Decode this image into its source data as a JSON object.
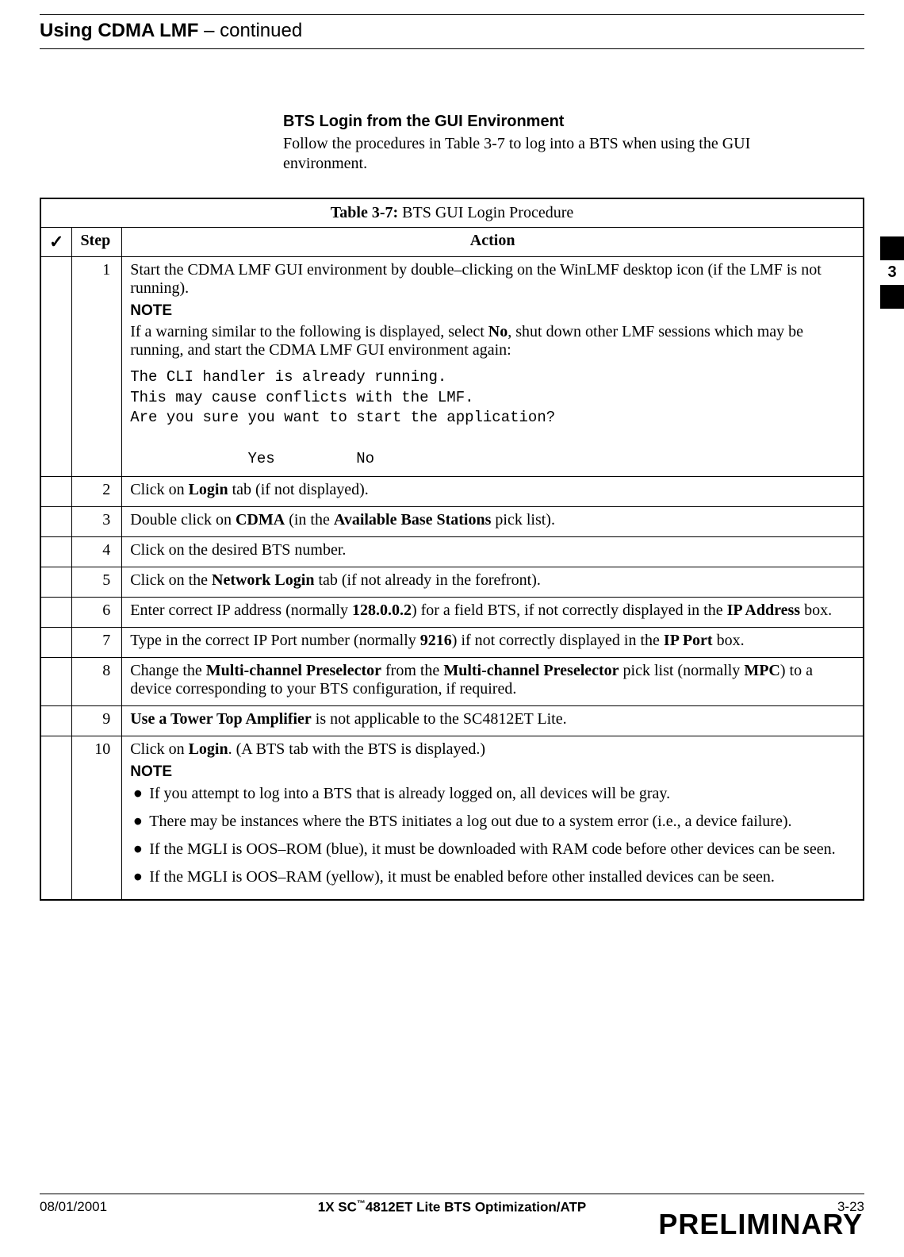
{
  "header": {
    "title_bold": "Using CDMA LMF",
    "title_rest": " – continued"
  },
  "side_tab": {
    "number": "3"
  },
  "section": {
    "heading": "BTS Login from the GUI Environment",
    "para_pre": "Follow the procedures in ",
    "para_ref": "Table 3-7",
    "para_post": " to log into a BTS when using the GUI environment."
  },
  "table": {
    "caption_label": "Table 3-7:",
    "caption_text": " BTS GUI Login Procedure",
    "head_check": "✓",
    "head_step": "Step",
    "head_action": "Action",
    "rows": [
      {
        "step": "1",
        "action_pre": "Start the CDMA LMF GUI environment by double–clicking on the WinLMF desktop icon (if the LMF is not running).",
        "note_label": "NOTE",
        "note_text_pre": "If a warning similar to the following is displayed, select ",
        "note_bold": "No",
        "note_text_post": ", shut down other LMF sessions which may be running, and start the CDMA LMF GUI environment again:",
        "mono": "The CLI handler is already running.\nThis may cause conflicts with the LMF.\nAre you sure you want to start the application?\n\n             Yes         No"
      },
      {
        "step": "2",
        "segments": [
          {
            "t": "Click on "
          },
          {
            "t": "Login",
            "b": true
          },
          {
            "t": " tab (if not displayed)."
          }
        ]
      },
      {
        "step": "3",
        "segments": [
          {
            "t": "Double click on "
          },
          {
            "t": "CDMA",
            "b": true
          },
          {
            "t": " (in the "
          },
          {
            "t": "Available Base Stations",
            "b": true
          },
          {
            "t": " pick list)."
          }
        ]
      },
      {
        "step": "4",
        "segments": [
          {
            "t": "Click on the desired BTS number."
          }
        ]
      },
      {
        "step": "5",
        "segments": [
          {
            "t": "Click on the "
          },
          {
            "t": "Network Login",
            "b": true
          },
          {
            "t": " tab (if not already in the forefront)."
          }
        ]
      },
      {
        "step": "6",
        "segments": [
          {
            "t": "Enter correct IP address (normally "
          },
          {
            "t": "128.0.0.2",
            "b": true
          },
          {
            "t": ") for a field BTS, if not correctly displayed in the "
          },
          {
            "t": "IP Address",
            "b": true
          },
          {
            "t": " box."
          }
        ]
      },
      {
        "step": "7",
        "segments": [
          {
            "t": "Type in the correct IP Port number (normally "
          },
          {
            "t": "9216",
            "b": true
          },
          {
            "t": ") if not correctly displayed in the "
          },
          {
            "t": "IP Port",
            "b": true
          },
          {
            "t": " box."
          }
        ]
      },
      {
        "step": "8",
        "segments": [
          {
            "t": "Change the "
          },
          {
            "t": "Multi-channel Preselector",
            "b": true
          },
          {
            "t": " from the "
          },
          {
            "t": "Multi-channel Preselector",
            "b": true
          },
          {
            "t": " pick list (normally "
          },
          {
            "t": "MPC",
            "b": true
          },
          {
            "t": ") to a device corresponding to your BTS configuration, if required."
          }
        ]
      },
      {
        "step": "9",
        "segments": [
          {
            "t": "Use a Tower Top Amplifier",
            "b": true
          },
          {
            "t": " is not applicable to the SC4812ET Lite."
          }
        ]
      },
      {
        "step": "10",
        "segments": [
          {
            "t": "Click on "
          },
          {
            "t": "Login",
            "b": true
          },
          {
            "t": ". (A BTS tab with the BTS is displayed.)"
          }
        ],
        "note_label": "NOTE",
        "bullets": [
          "If you attempt to log into a BTS that is already logged on, all devices will be gray.",
          "There may be instances where the BTS initiates a log out due to a system error (i.e., a device failure).",
          "If the MGLI is OOS–ROM (blue), it must be downloaded with RAM code before other devices can be seen.",
          "If the MGLI is OOS–RAM (yellow), it must be enabled before other installed devices can be seen."
        ]
      }
    ]
  },
  "footer": {
    "date": "08/01/2001",
    "center_pre": "1X SC",
    "center_tm": "™",
    "center_post": "4812ET Lite BTS Optimization/ATP",
    "page": "3-23",
    "watermark": "PRELIMINARY"
  }
}
